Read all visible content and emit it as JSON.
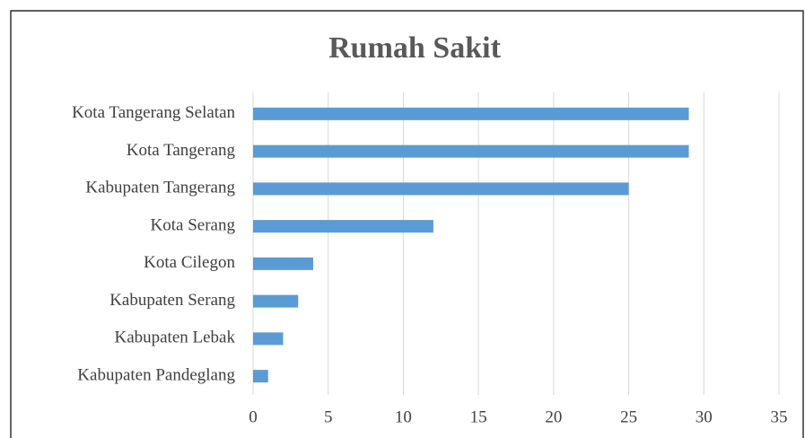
{
  "chart_data": {
    "type": "bar",
    "orientation": "horizontal",
    "title": "Rumah Sakit",
    "categories": [
      "Kota Tangerang Selatan",
      "Kota Tangerang",
      "Kabupaten Tangerang",
      "Kota Serang",
      "Kota Cilegon",
      "Kabupaten Serang",
      "Kabupaten Lebak",
      "Kabupaten Pandeglang"
    ],
    "values": [
      29,
      29,
      25,
      12,
      4,
      3,
      2,
      1
    ],
    "color": "#5b9bd5",
    "xlim": [
      0,
      35
    ],
    "xticks": [
      0,
      5,
      10,
      15,
      20,
      25,
      30,
      35
    ],
    "grid": true
  }
}
